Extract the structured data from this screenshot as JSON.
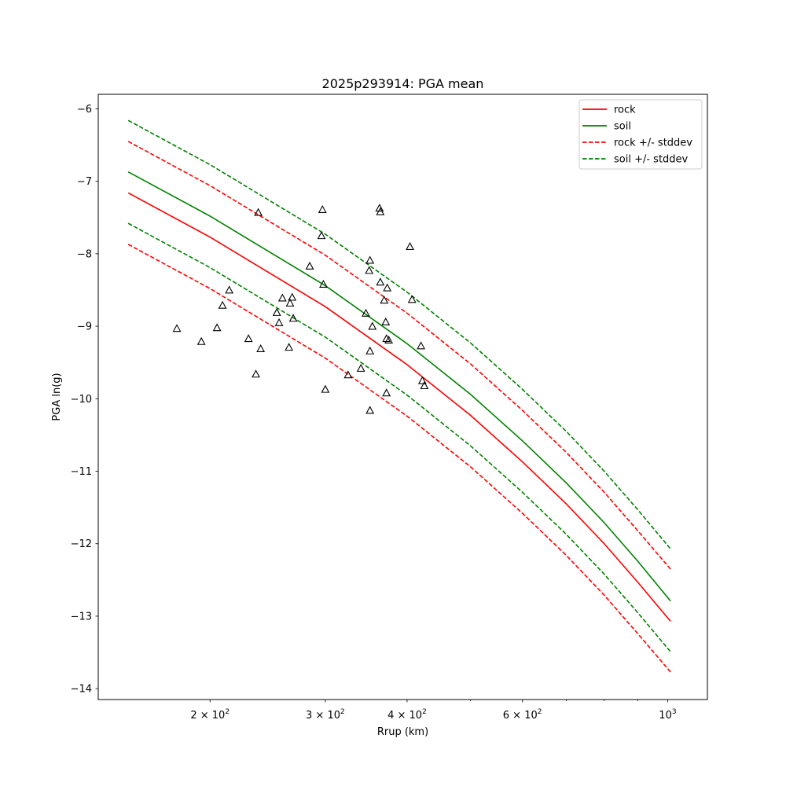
{
  "chart_data": {
    "type": "line",
    "title": "2025p293914: PGA mean",
    "xlabel": "Rrup (km)",
    "ylabel": "PGA ln(g)",
    "xscale": "log",
    "xlim": [
      135,
      1150
    ],
    "ylim": [
      -14.15,
      -5.8
    ],
    "grid": false,
    "legend_position": "top-right",
    "x_ticks": [
      {
        "value": 200,
        "base": "2",
        "exp": "2"
      },
      {
        "value": 300,
        "base": "3",
        "exp": "2"
      },
      {
        "value": 400,
        "base": "4",
        "exp": "2"
      },
      {
        "value": 600,
        "base": "6",
        "exp": "2"
      },
      {
        "value": 1000,
        "base": "10",
        "exp": "3",
        "power_only": true
      }
    ],
    "x_minor_ticks": [
      500,
      700,
      800,
      900
    ],
    "y_ticks": [
      {
        "value": -6,
        "label": "−6"
      },
      {
        "value": -7,
        "label": "−7"
      },
      {
        "value": -8,
        "label": "−8"
      },
      {
        "value": -9,
        "label": "−9"
      },
      {
        "value": -10,
        "label": "−10"
      },
      {
        "value": -11,
        "label": "−11"
      },
      {
        "value": -12,
        "label": "−12"
      },
      {
        "value": -13,
        "label": "−13"
      },
      {
        "value": -14,
        "label": "−14"
      }
    ],
    "curve_x": [
      150,
      200,
      300,
      400,
      500,
      600,
      700,
      800,
      900,
      1010
    ],
    "series": [
      {
        "name": "rock",
        "color": "#ff0000",
        "dash": "solid",
        "y": [
          -7.16,
          -7.77,
          -8.73,
          -9.53,
          -10.23,
          -10.87,
          -11.45,
          -12.0,
          -12.53,
          -13.07
        ]
      },
      {
        "name": "soil",
        "color": "#008000",
        "dash": "solid",
        "y": [
          -6.87,
          -7.48,
          -8.44,
          -9.24,
          -9.94,
          -10.58,
          -11.16,
          -11.71,
          -12.24,
          -12.79
        ]
      },
      {
        "name": "rock +/- stddev",
        "color": "#ff0000",
        "dash": "dashed",
        "y": [
          -6.45,
          -7.06,
          -8.02,
          -8.82,
          -9.52,
          -10.16,
          -10.74,
          -11.29,
          -11.82,
          -12.35
        ]
      },
      {
        "name": "",
        "color": "#ff0000",
        "dash": "dashed",
        "y": [
          -7.87,
          -8.48,
          -9.44,
          -10.24,
          -10.94,
          -11.58,
          -12.16,
          -12.71,
          -13.24,
          -13.77
        ]
      },
      {
        "name": "soil +/- stddev",
        "color": "#008000",
        "dash": "dashed",
        "y": [
          -6.16,
          -6.77,
          -7.73,
          -8.53,
          -9.23,
          -9.87,
          -10.45,
          -11.0,
          -11.53,
          -12.07
        ]
      },
      {
        "name": "",
        "color": "#008000",
        "dash": "dashed",
        "y": [
          -7.58,
          -8.19,
          -9.15,
          -9.95,
          -10.65,
          -11.29,
          -11.87,
          -12.42,
          -12.95,
          -13.49
        ]
      }
    ],
    "observations": {
      "marker": "triangle",
      "color": "#000000",
      "points": [
        [
          178,
          -9.03
        ],
        [
          194,
          -9.21
        ],
        [
          205,
          -9.02
        ],
        [
          209,
          -8.71
        ],
        [
          214,
          -8.5
        ],
        [
          229,
          -9.17
        ],
        [
          235,
          -9.66
        ],
        [
          237,
          -7.43
        ],
        [
          239,
          -9.31
        ],
        [
          253,
          -8.81
        ],
        [
          255,
          -8.95
        ],
        [
          258,
          -8.61
        ],
        [
          264,
          -9.29
        ],
        [
          265,
          -8.68
        ],
        [
          267,
          -8.6
        ],
        [
          268,
          -8.89
        ],
        [
          284,
          -8.17
        ],
        [
          296,
          -7.75
        ],
        [
          297,
          -7.39
        ],
        [
          298,
          -8.42
        ],
        [
          300,
          -9.87
        ],
        [
          325,
          -9.67
        ],
        [
          340,
          -9.58
        ],
        [
          346,
          -8.82
        ],
        [
          350,
          -8.23
        ],
        [
          351,
          -8.09
        ],
        [
          351,
          -9.34
        ],
        [
          351,
          -10.16
        ],
        [
          354,
          -9.0
        ],
        [
          363,
          -7.37
        ],
        [
          364,
          -8.39
        ],
        [
          364,
          -7.42
        ],
        [
          369,
          -8.64
        ],
        [
          371,
          -8.94
        ],
        [
          372,
          -9.17
        ],
        [
          372,
          -9.92
        ],
        [
          373,
          -8.47
        ],
        [
          375,
          -9.19
        ],
        [
          404,
          -7.9
        ],
        [
          407,
          -8.63
        ],
        [
          420,
          -9.27
        ],
        [
          422,
          -9.75
        ],
        [
          425,
          -9.82
        ]
      ]
    },
    "legend": [
      {
        "label": "rock",
        "color": "#ff0000",
        "dash": "solid"
      },
      {
        "label": "soil",
        "color": "#008000",
        "dash": "solid"
      },
      {
        "label": "rock +/- stddev",
        "color": "#ff0000",
        "dash": "dashed"
      },
      {
        "label": "soil +/- stddev",
        "color": "#008000",
        "dash": "dashed"
      }
    ]
  }
}
